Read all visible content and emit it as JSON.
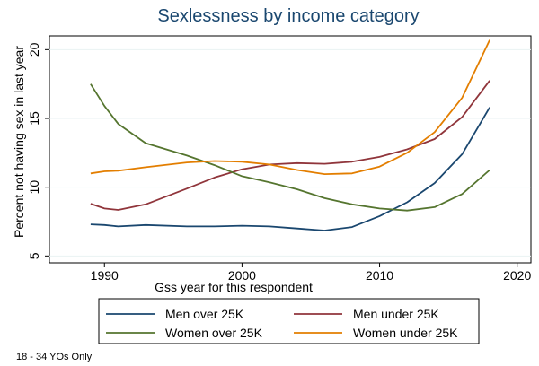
{
  "chart_data": {
    "type": "line",
    "title": "Sexlessness by income category",
    "xlabel": "Gss year for this respondent",
    "ylabel": "Percent not having sex in last year",
    "note": "18 - 34 YOs Only",
    "xlim": [
      1986,
      2021
    ],
    "ylim": [
      4.5,
      21.0
    ],
    "xticks": [
      1990,
      2000,
      2010,
      2020
    ],
    "yticks": [
      5,
      10,
      15,
      20
    ],
    "grid": {
      "horizontal": true,
      "vertical": false
    },
    "legend": {
      "placement": "bottom",
      "columns": 2
    },
    "series": [
      {
        "name": "Men over 25K",
        "color": "#1a476f",
        "points": [
          [
            1989,
            7.3
          ],
          [
            1990,
            7.25
          ],
          [
            1991,
            7.15
          ],
          [
            1993,
            7.25
          ],
          [
            1996,
            7.15
          ],
          [
            1998,
            7.15
          ],
          [
            2000,
            7.2
          ],
          [
            2002,
            7.15
          ],
          [
            2004,
            7.0
          ],
          [
            2006,
            6.85
          ],
          [
            2008,
            7.1
          ],
          [
            2010,
            7.9
          ],
          [
            2012,
            8.9
          ],
          [
            2014,
            10.3
          ],
          [
            2016,
            12.4
          ],
          [
            2018,
            15.8
          ]
        ]
      },
      {
        "name": "Men under 25K",
        "color": "#90353b",
        "points": [
          [
            1989,
            8.8
          ],
          [
            1990,
            8.45
          ],
          [
            1991,
            8.35
          ],
          [
            1993,
            8.75
          ],
          [
            1996,
            9.9
          ],
          [
            1998,
            10.7
          ],
          [
            2000,
            11.3
          ],
          [
            2002,
            11.65
          ],
          [
            2004,
            11.75
          ],
          [
            2006,
            11.7
          ],
          [
            2008,
            11.85
          ],
          [
            2010,
            12.2
          ],
          [
            2012,
            12.75
          ],
          [
            2014,
            13.5
          ],
          [
            2016,
            15.1
          ],
          [
            2018,
            17.75
          ]
        ]
      },
      {
        "name": "Women over 25K",
        "color": "#55752f",
        "points": [
          [
            1989,
            17.5
          ],
          [
            1990,
            15.9
          ],
          [
            1991,
            14.6
          ],
          [
            1993,
            13.2
          ],
          [
            1996,
            12.3
          ],
          [
            1998,
            11.6
          ],
          [
            2000,
            10.8
          ],
          [
            2002,
            10.35
          ],
          [
            2004,
            9.85
          ],
          [
            2006,
            9.2
          ],
          [
            2008,
            8.75
          ],
          [
            2010,
            8.45
          ],
          [
            2012,
            8.3
          ],
          [
            2014,
            8.55
          ],
          [
            2016,
            9.5
          ],
          [
            2018,
            11.25
          ]
        ]
      },
      {
        "name": "Women under 25K",
        "color": "#e37e00",
        "points": [
          [
            1989,
            11.0
          ],
          [
            1990,
            11.15
          ],
          [
            1991,
            11.2
          ],
          [
            1993,
            11.45
          ],
          [
            1996,
            11.8
          ],
          [
            1998,
            11.9
          ],
          [
            2000,
            11.85
          ],
          [
            2002,
            11.65
          ],
          [
            2004,
            11.25
          ],
          [
            2006,
            10.95
          ],
          [
            2008,
            11.0
          ],
          [
            2010,
            11.5
          ],
          [
            2012,
            12.5
          ],
          [
            2014,
            14.0
          ],
          [
            2016,
            16.5
          ],
          [
            2018,
            20.7
          ]
        ]
      }
    ]
  }
}
